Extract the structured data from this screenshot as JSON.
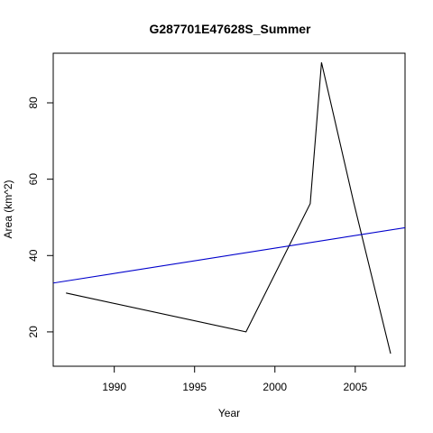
{
  "chart_data": {
    "type": "line",
    "title": "G287701E47628S_Summer",
    "xlabel": "Year",
    "ylabel": "Area (km^2)",
    "xlim": [
      1986.2,
      2008.1
    ],
    "ylim": [
      11.0,
      93.0
    ],
    "xticks": [
      1990,
      1995,
      2000,
      2005
    ],
    "yticks": [
      20,
      40,
      60,
      80
    ],
    "grid": false,
    "series": [
      {
        "color": "#000000",
        "x": [
          1987,
          1998.2,
          2002.2,
          2002.9,
          2004.9,
          2007.2
        ],
        "y": [
          30.2,
          20.0,
          53.6,
          90.6,
          54.0,
          14.3
        ]
      }
    ],
    "trend_line": {
      "color": "#0000cc",
      "x": [
        1986.2,
        2008.1
      ],
      "y": [
        32.8,
        47.3
      ]
    }
  }
}
